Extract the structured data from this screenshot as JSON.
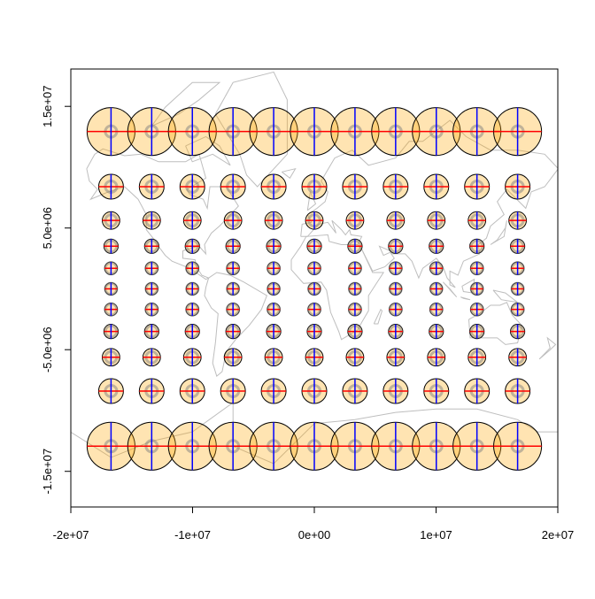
{
  "chart_data": {
    "type": "scatter",
    "title": "",
    "xlabel": "",
    "ylabel": "",
    "xlim": [
      -20000000,
      20000000
    ],
    "ylim": [
      -17930000,
      18070000
    ],
    "x_ticks": [
      {
        "value": -20000000,
        "label": "-2e+07"
      },
      {
        "value": -10000000,
        "label": "-1e+07"
      },
      {
        "value": 0,
        "label": "0e+00"
      },
      {
        "value": 10000000,
        "label": "1e+07"
      },
      {
        "value": 20000000,
        "label": "2e+07"
      }
    ],
    "y_ticks": [
      {
        "value": 15000000,
        "label": "1.5e+07"
      },
      {
        "value": 5000000,
        "label": "5.0e+06"
      },
      {
        "value": -5000000,
        "label": "-5.0e+06"
      },
      {
        "value": -15000000,
        "label": "-1.5e+07"
      }
    ],
    "projection": "Mercator",
    "grid": false,
    "indicatrix_longitudes": [
      -150,
      -120,
      -90,
      -60,
      -30,
      0,
      30,
      60,
      90,
      120,
      150
    ],
    "indicatrix_latitudes": [
      75,
      60,
      45,
      30,
      15,
      0,
      -15,
      -30,
      -45,
      -60,
      -75
    ],
    "colors": {
      "indicatrix_fill": "#FFA500",
      "indicatrix_border": "#000000",
      "east_west_axis": "#FF0000",
      "north_south_axis": "#0000FF",
      "reference_ring": "#808080",
      "coastlines": "#BEBEBE"
    }
  }
}
